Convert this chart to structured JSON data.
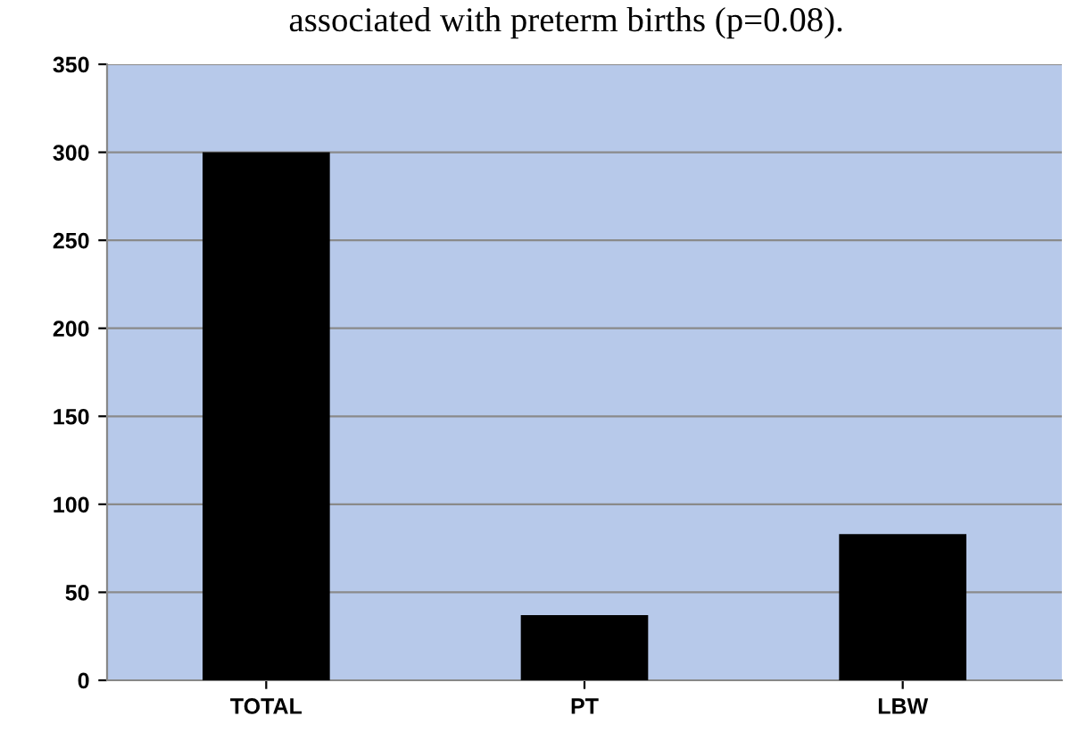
{
  "chart_data": {
    "type": "bar",
    "annotations": [
      "associated with preterm births (p=0.08)."
    ],
    "categories": [
      "TOTAL",
      "PT",
      "LBW"
    ],
    "values": [
      300,
      37,
      83
    ],
    "color": "#000000",
    "ylim": [
      0,
      350
    ],
    "yticks": [
      0,
      50,
      100,
      150,
      200,
      250,
      300,
      350
    ],
    "grid": "y"
  }
}
